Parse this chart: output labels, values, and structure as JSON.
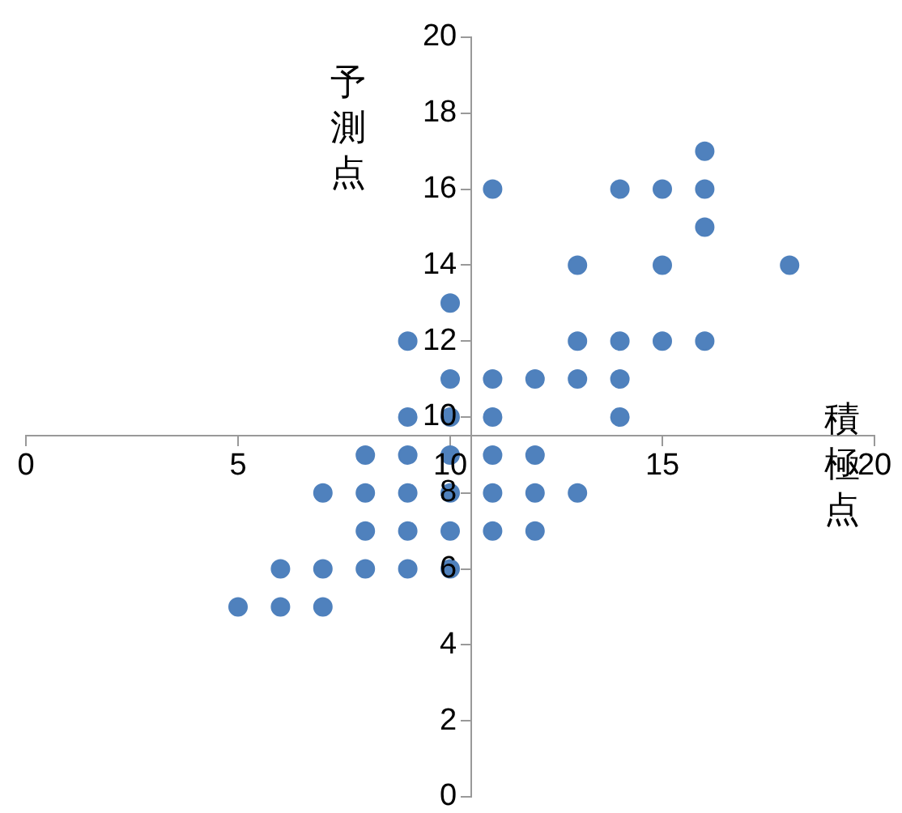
{
  "chart_data": {
    "type": "scatter",
    "xlabel": "積極点",
    "ylabel": "予測点",
    "x": [
      5,
      6,
      7,
      6,
      7,
      8,
      9,
      10,
      8,
      9,
      10,
      11,
      12,
      7,
      8,
      9,
      10,
      11,
      12,
      13,
      8,
      9,
      10,
      11,
      12,
      9,
      10,
      11,
      14,
      10,
      11,
      12,
      13,
      14,
      9,
      13,
      14,
      15,
      16,
      10,
      13,
      15,
      18,
      16,
      11,
      14,
      15,
      16,
      16
    ],
    "values": [
      5,
      5,
      5,
      6,
      6,
      6,
      6,
      6,
      7,
      7,
      7,
      7,
      7,
      8,
      8,
      8,
      8,
      8,
      8,
      8,
      9,
      9,
      9,
      9,
      9,
      10,
      10,
      10,
      10,
      11,
      11,
      11,
      11,
      11,
      12,
      12,
      12,
      12,
      12,
      13,
      14,
      14,
      14,
      15,
      16,
      16,
      16,
      16,
      17
    ],
    "color": "#4f81bd",
    "marker": "circle",
    "xlim": [
      0,
      20
    ],
    "xticks": [
      0,
      5,
      10,
      15,
      20
    ],
    "ylim": [
      0,
      20
    ],
    "yticks": [
      0,
      2,
      4,
      6,
      8,
      10,
      12,
      14,
      16,
      18,
      20
    ],
    "grid": false,
    "legend": false
  }
}
